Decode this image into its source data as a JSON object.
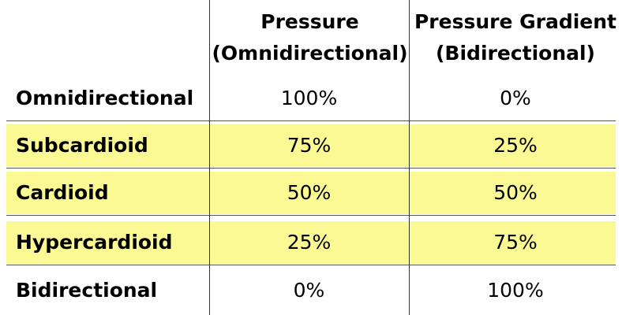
{
  "columns": [
    {
      "line1": "Pressure",
      "line2": "(Omnidirectional)"
    },
    {
      "line1": "Pressure Gradient",
      "line2": "(Bidirectional)"
    }
  ],
  "rows": [
    {
      "label": "Omnidirectional",
      "pressure": "100%",
      "gradient": "0%",
      "highlight": false
    },
    {
      "label": "Subcardioid",
      "pressure": "75%",
      "gradient": "25%",
      "highlight": true
    },
    {
      "label": "Cardioid",
      "pressure": "50%",
      "gradient": "50%",
      "highlight": true
    },
    {
      "label": "Hypercardioid",
      "pressure": "25%",
      "gradient": "75%",
      "highlight": true
    },
    {
      "label": "Bidirectional",
      "pressure": "0%",
      "gradient": "100%",
      "highlight": false
    }
  ],
  "colors": {
    "highlight": "#fbf994",
    "rule": "#555555"
  }
}
